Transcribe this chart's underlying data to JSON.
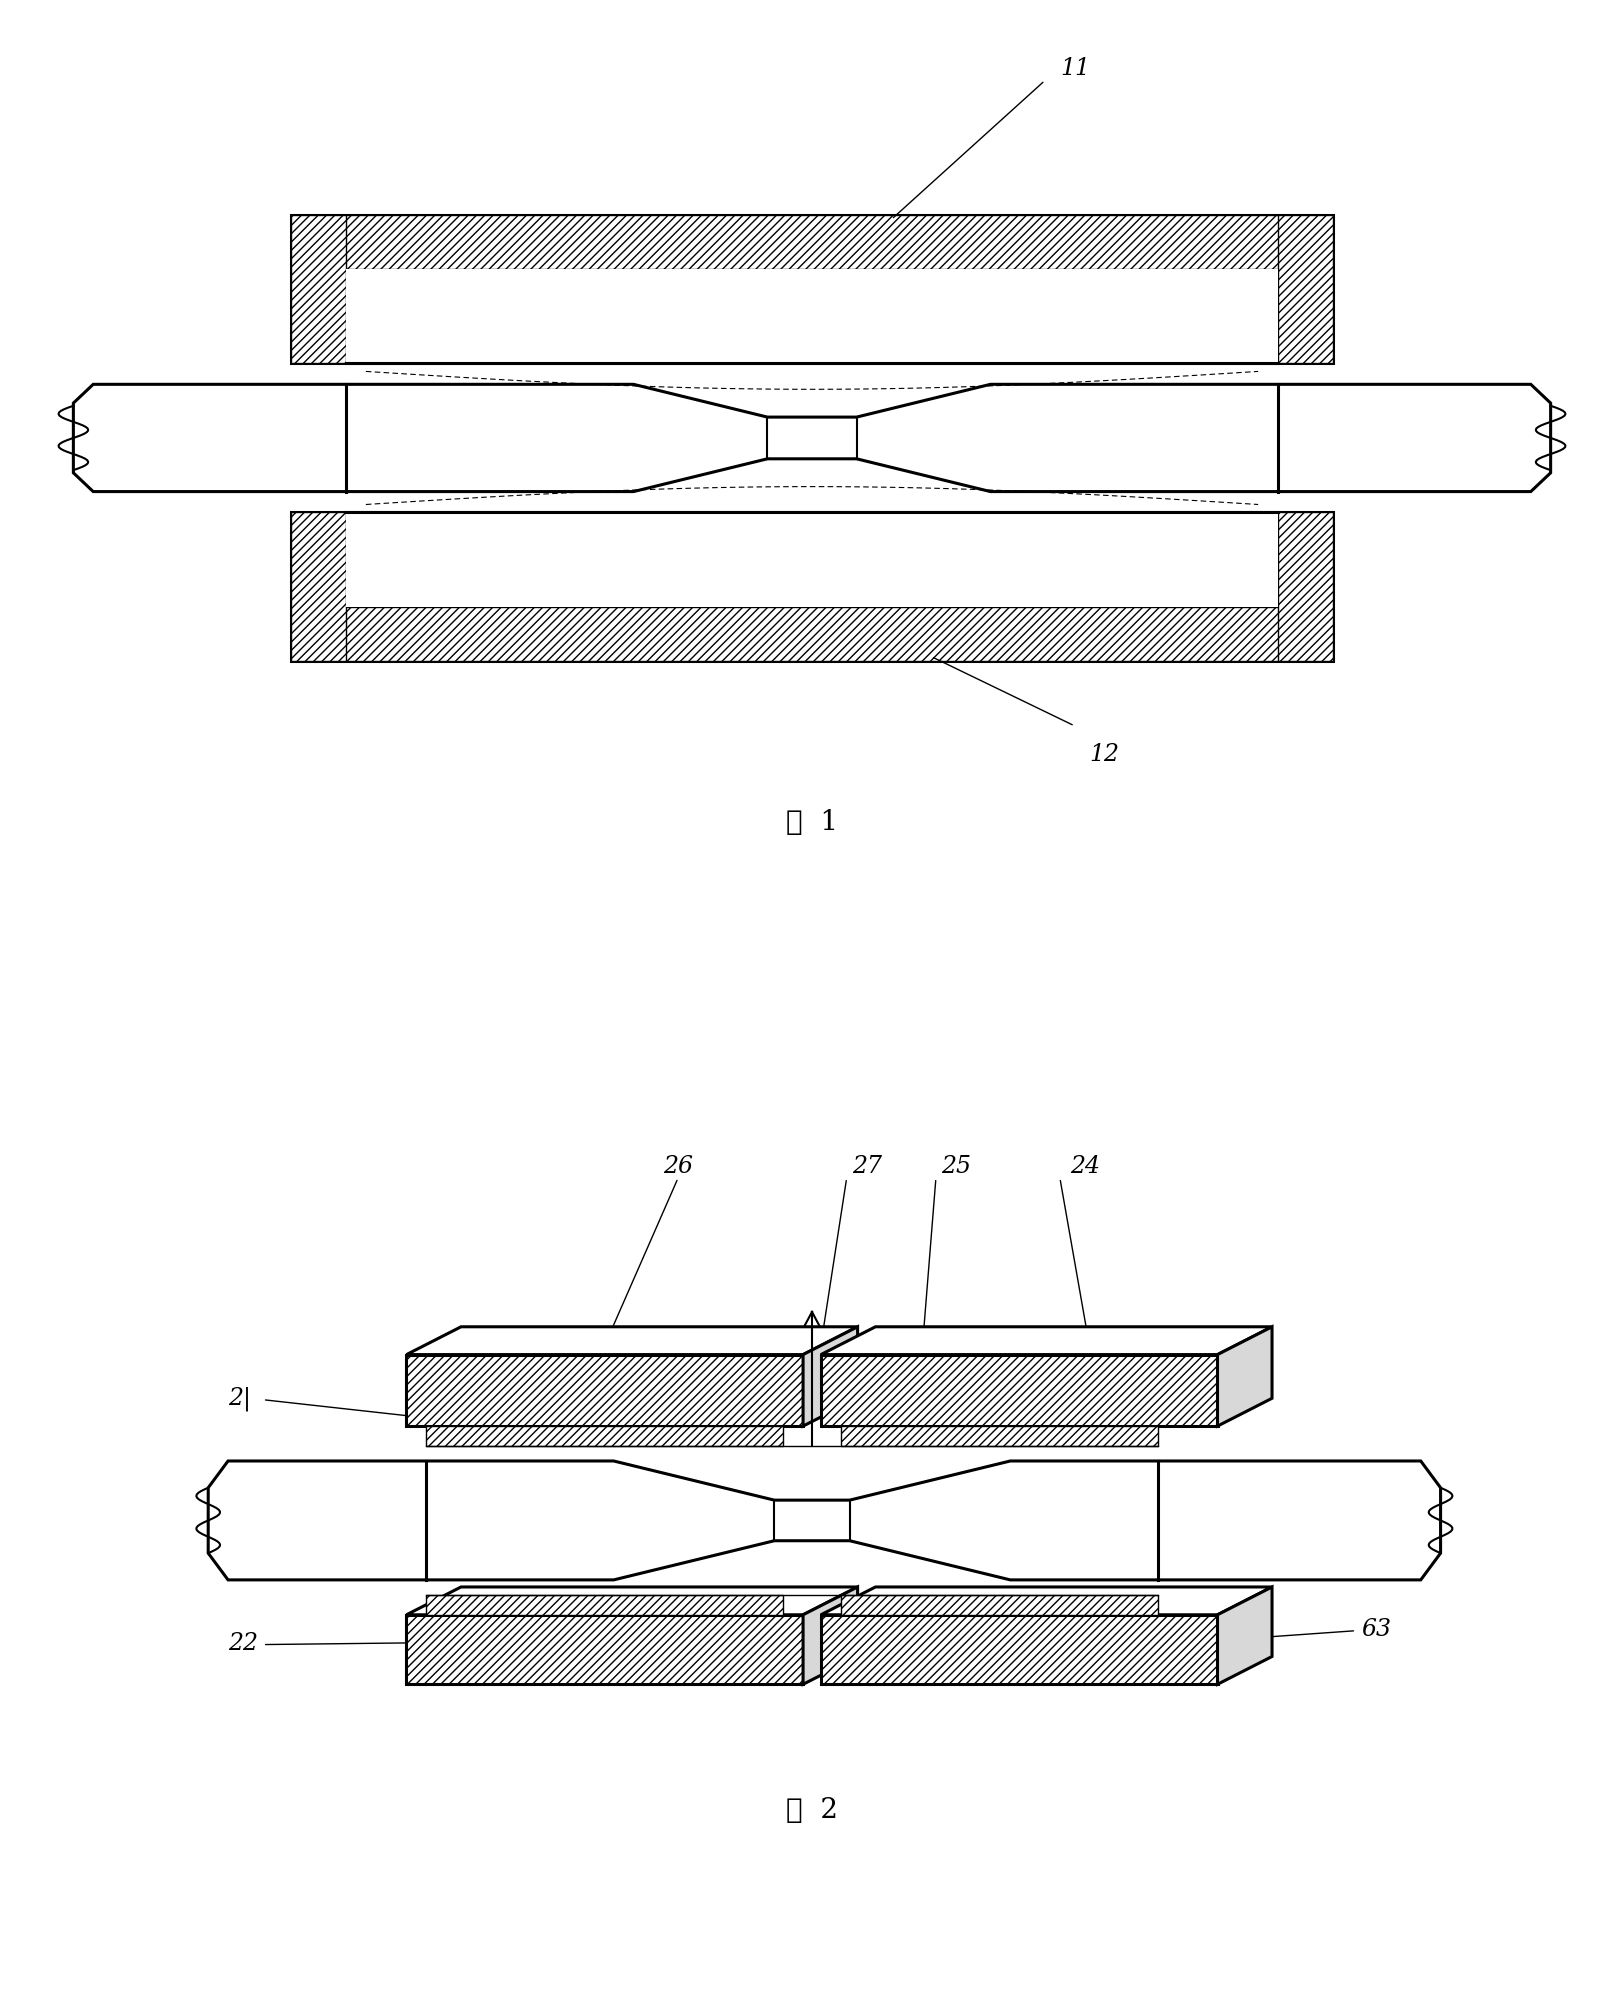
{
  "fig_width": 16.24,
  "fig_height": 20.14,
  "bg_color": "#ffffff",
  "line_color": "#000000",
  "fig1_label": "图  1",
  "fig2_label": "图  2",
  "label_11": "11",
  "label_12": "12",
  "label_21": "2|",
  "label_22": "22",
  "label_23": "63",
  "label_24": "24",
  "label_25": "25",
  "label_26": "26",
  "label_27": "27"
}
